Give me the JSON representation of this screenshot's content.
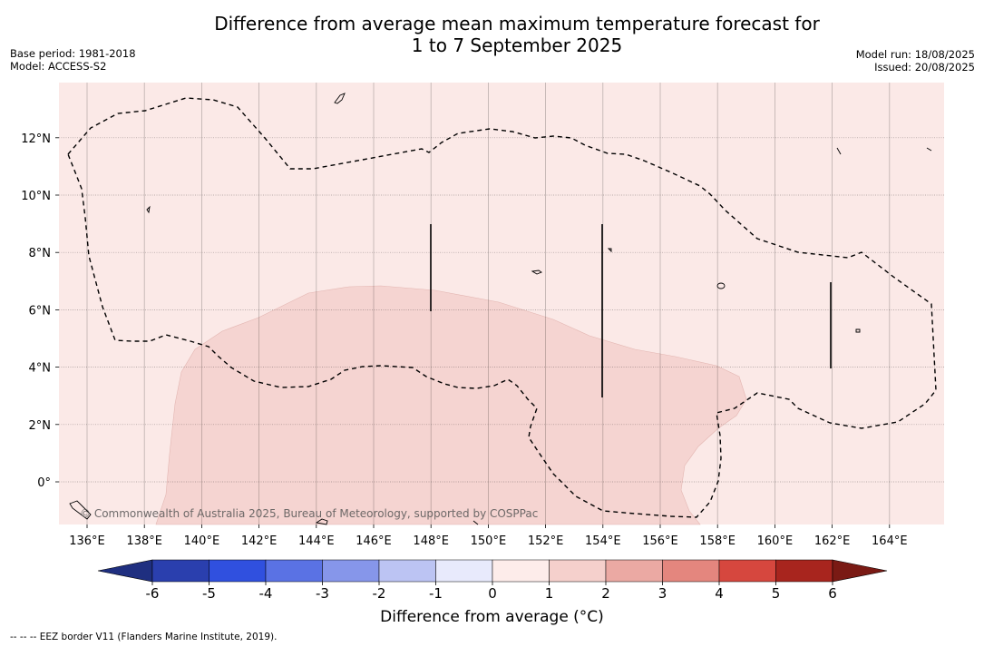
{
  "title": {
    "line1": "Difference from average mean maximum temperature forecast for",
    "line2": "1 to 7 September 2025"
  },
  "meta_left": {
    "base_period": "Base period: 1981-2018",
    "model": "Model: ACCESS-S2"
  },
  "meta_right": {
    "model_run": "Model run: 18/08/2025",
    "issued": "Issued: 20/08/2025"
  },
  "map": {
    "lon_range": [
      135,
      166
    ],
    "lat_range": [
      -1.5,
      14
    ],
    "lon_ticks": [
      "136°E",
      "138°E",
      "140°E",
      "142°E",
      "144°E",
      "146°E",
      "148°E",
      "150°E",
      "152°E",
      "154°E",
      "156°E",
      "158°E",
      "160°E",
      "162°E",
      "164°E"
    ],
    "lat_ticks": [
      "0°",
      "2°N",
      "4°N",
      "6°N",
      "8°N",
      "10°N",
      "12°N"
    ],
    "background_category": "0 to 1",
    "anomaly_region_category": "1 to 2",
    "copyright": "© Commonwealth of Australia 2025, Bureau of Meteorology, supported by COSPPac",
    "colors": {
      "bg": "#fbe9e7",
      "anomaly": "#f5d4d1"
    }
  },
  "colorbar": {
    "title": "Difference from average (°C)",
    "tick_labels": [
      "-6",
      "-5",
      "-4",
      "-3",
      "-2",
      "-1",
      "0",
      "1",
      "2",
      "3",
      "4",
      "5",
      "6"
    ],
    "colors": [
      "#1f2f80",
      "#2a3fae",
      "#3050df",
      "#5a72e4",
      "#8696ea",
      "#bcc4f3",
      "#e8eafc",
      "#fdecea",
      "#f5d0cc",
      "#eba9a3",
      "#e4867e",
      "#d6473e",
      "#a8251e",
      "#7a1a14"
    ]
  },
  "footnote": "--  --  -- EEZ border V11 (Flanders Marine Institute, 2019)."
}
